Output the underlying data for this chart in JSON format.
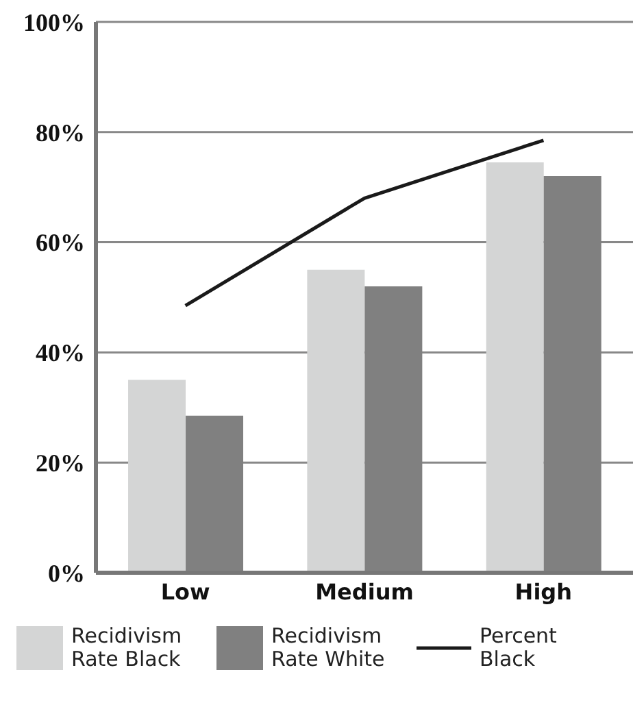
{
  "chart_data": {
    "type": "bar",
    "categories": [
      "Low",
      "Medium",
      "High"
    ],
    "series": [
      {
        "name": "Recidivism Rate Black",
        "color": "#d4d5d5",
        "values": [
          35,
          55,
          74.5
        ]
      },
      {
        "name": "Recidivism Rate White",
        "color": "#808080",
        "values": [
          28.5,
          52,
          72
        ]
      },
      {
        "name": "Percent Black",
        "type": "line",
        "color": "#1a1a1a",
        "values": [
          48.5,
          68,
          78.5
        ]
      }
    ],
    "ylim": [
      0,
      100
    ],
    "yticks": [
      {
        "value": 0,
        "label": "0%"
      },
      {
        "value": 20,
        "label": "20%"
      },
      {
        "value": 40,
        "label": "40%"
      },
      {
        "value": 60,
        "label": "60%"
      },
      {
        "value": 80,
        "label": "80%"
      },
      {
        "value": 100,
        "label": "100%"
      }
    ],
    "grid": "y",
    "legend": "bottom",
    "marker": "none"
  }
}
